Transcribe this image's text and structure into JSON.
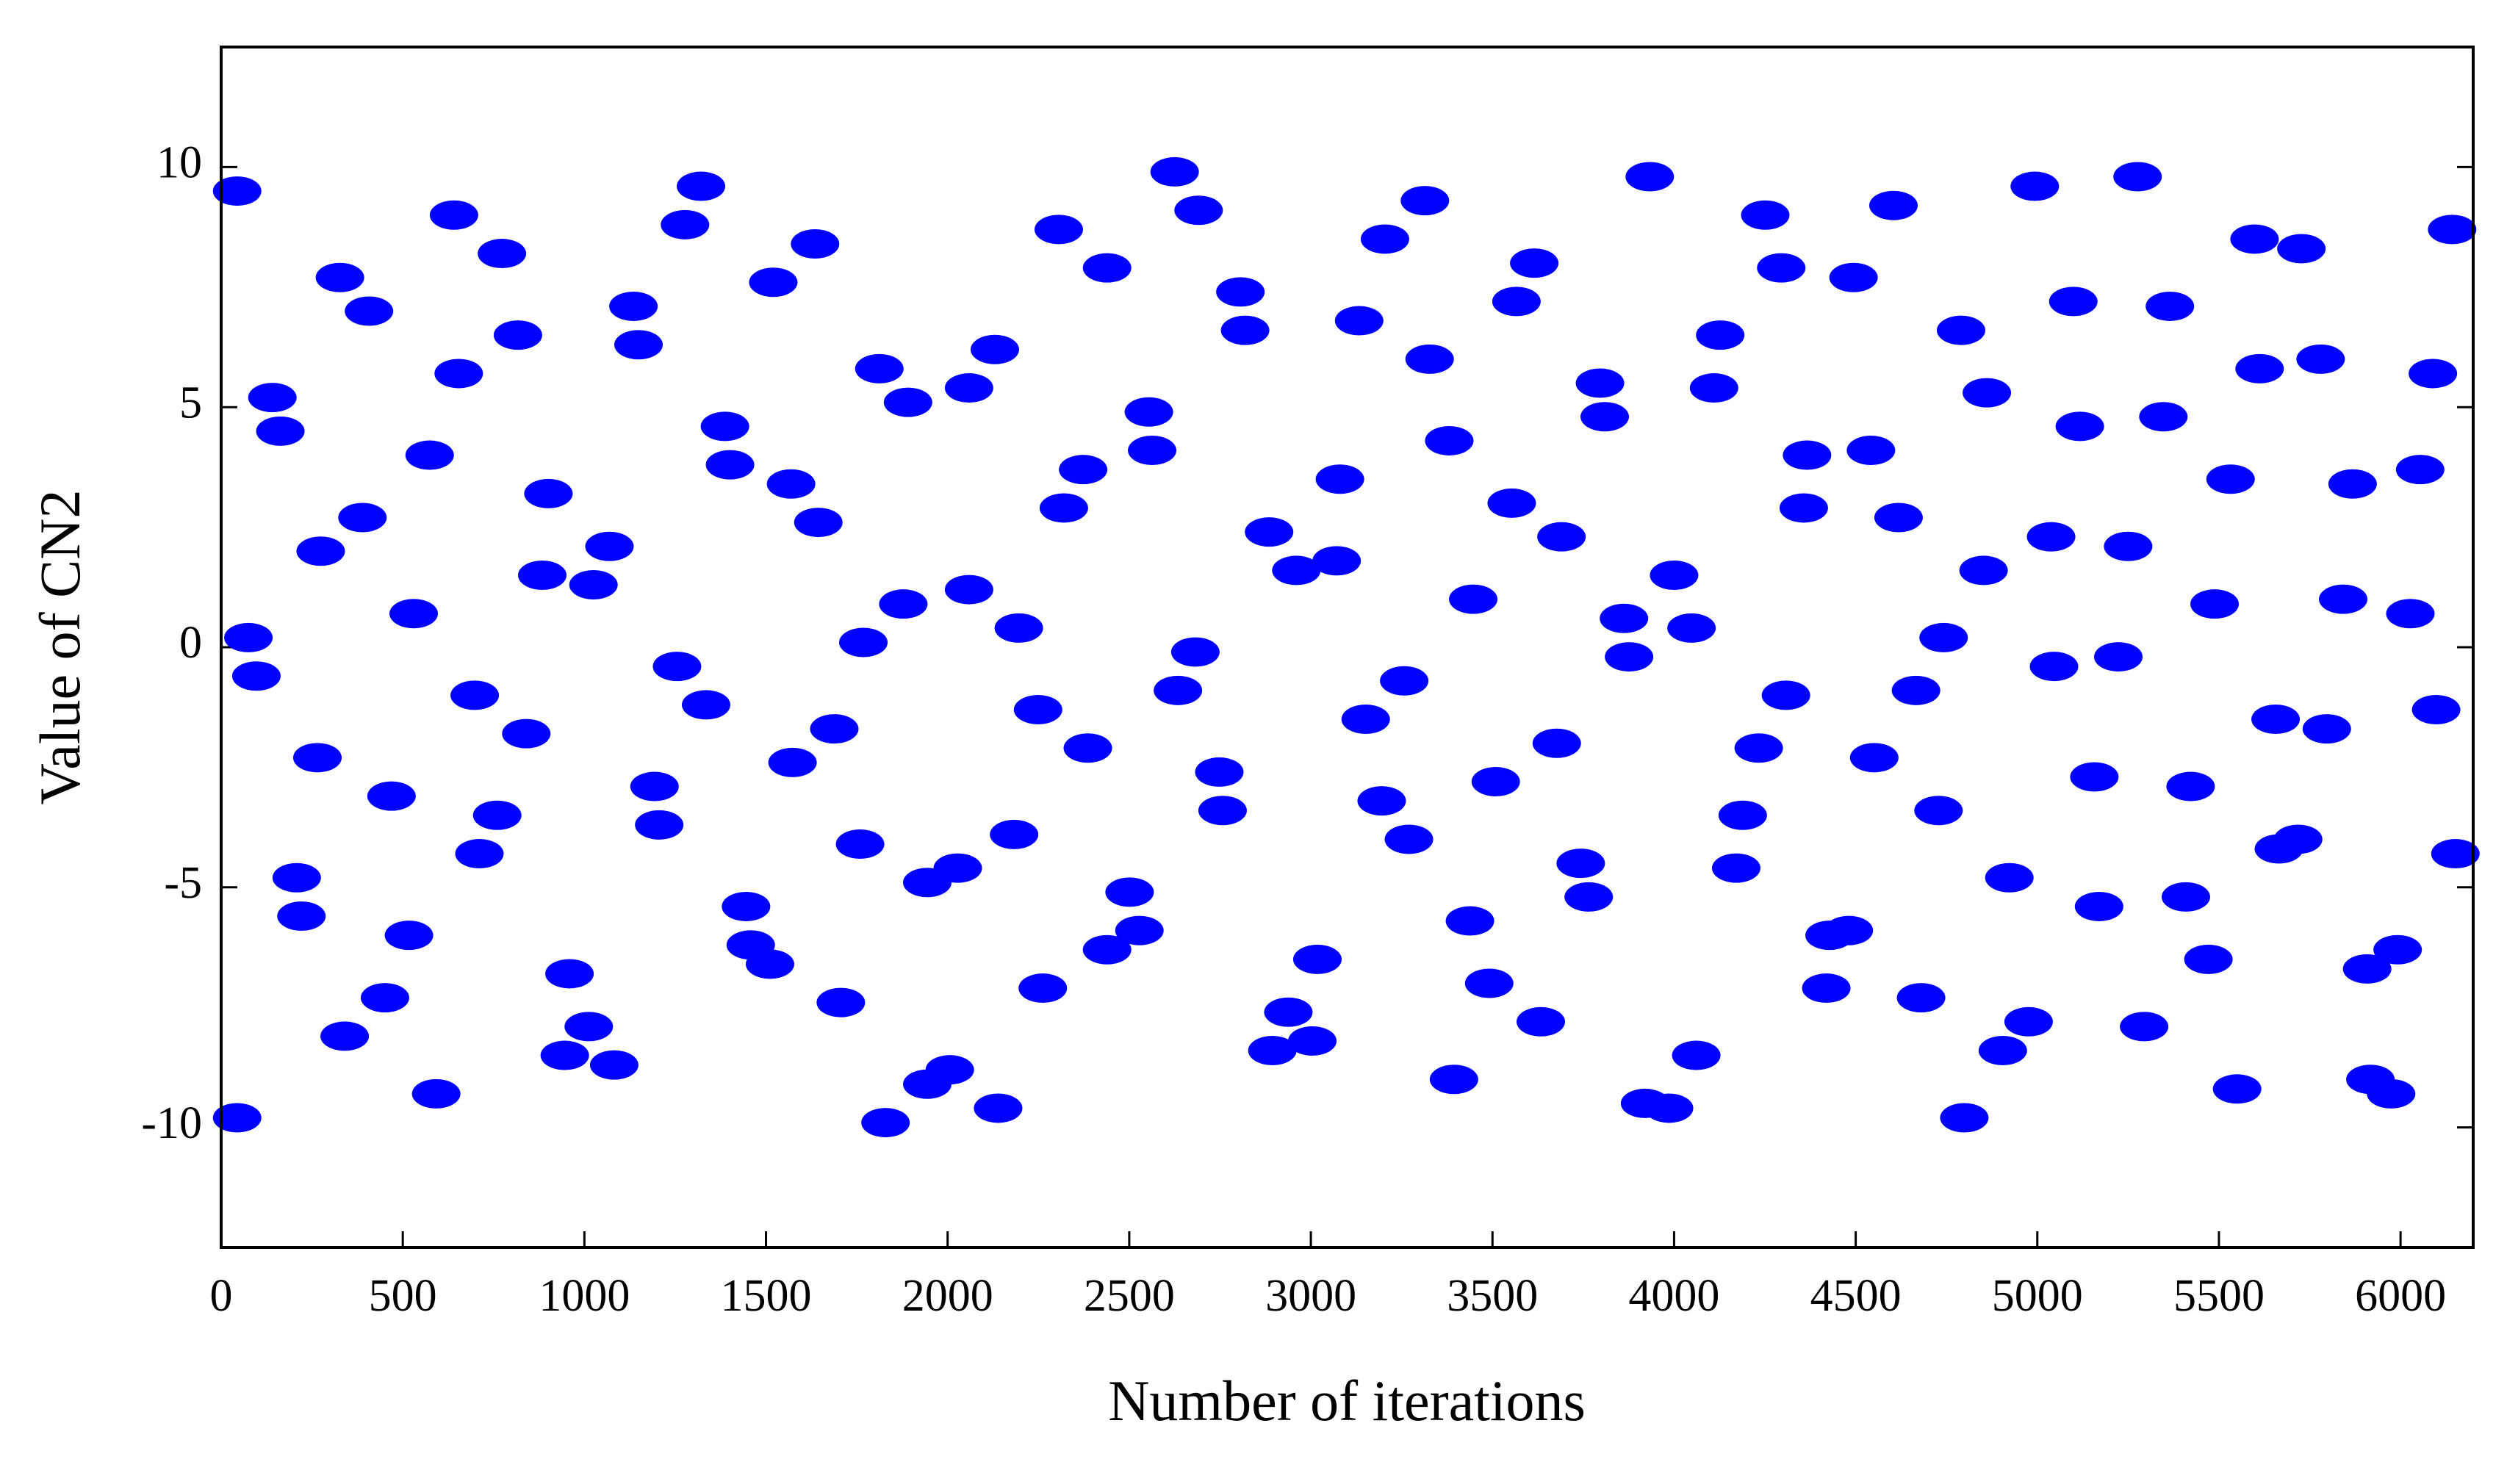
{
  "chart_data": {
    "type": "scatter",
    "x_label": "Number of iterations",
    "y_label": "Value of CN2",
    "color": "#0000ff",
    "xlim": [
      0,
      6200
    ],
    "xticks": [
      0,
      500,
      1000,
      1500,
      2000,
      2500,
      3000,
      3500,
      4000,
      4500,
      5000,
      5500,
      6000
    ],
    "ylim": [
      -12.5,
      12.5
    ],
    "yticks": [
      -10,
      -5,
      0,
      5,
      10
    ],
    "x": [
      44,
      75,
      97,
      44,
      141,
      163,
      208,
      221,
      274,
      265,
      327,
      407,
      340,
      389,
      451,
      469,
      530,
      517,
      574,
      592,
      641,
      654,
      698,
      711,
      760,
      773,
      817,
      840,
      884,
      901,
      946,
      959,
      1012,
      1025,
      1069,
      1082,
      1135,
      1149,
      1193,
      1206,
      1255,
      1277,
      1321,
      1335,
      1387,
      1401,
      1445,
      1458,
      1511,
      1520,
      1573,
      1569,
      1635,
      1644,
      1688,
      1706,
      1759,
      1768,
      1812,
      1829,
      1891,
      1878,
      1944,
      1944,
      2006,
      2028,
      2059,
      2059,
      2130,
      2139,
      2183,
      2196,
      2249,
      2262,
      2306,
      2320,
      2373,
      2386,
      2439,
      2439,
      2501,
      2528,
      2554,
      2563,
      2625,
      2634,
      2682,
      2691,
      2748,
      2757,
      2806,
      2819,
      2885,
      2894,
      2938,
      2960,
      3004,
      3018,
      3071,
      3080,
      3133,
      3151,
      3195,
      3204,
      3257,
      3270,
      3314,
      3327,
      3381,
      3394,
      3438,
      3447,
      3491,
      3509,
      3553,
      3566,
      3615,
      3633,
      3677,
      3690,
      3743,
      3765,
      3796,
      3809,
      3862,
      3876,
      3920,
      3933,
      3986,
      4000,
      4048,
      4061,
      4110,
      4127,
      4171,
      4189,
      4233,
      4251,
      4295,
      4308,
      4357,
      4366,
      4419,
      4428,
      4481,
      4494,
      4551,
      4542,
      4604,
      4618,
      4666,
      4680,
      4728,
      4742,
      4790,
      4799,
      4852,
      4861,
      4905,
      4923,
      4976,
      4993,
      5038,
      5046,
      5099,
      5117,
      5157,
      5170,
      5223,
      5250,
      5276,
      5294,
      5347,
      5365,
      5409,
      5422,
      5471,
      5488,
      5532,
      5550,
      5598,
      5612,
      5656,
      5665,
      5718,
      5727,
      5780,
      5797,
      5842,
      5868,
      5908,
      5917,
      5974,
      5992,
      6027,
      6054,
      6089,
      6098,
      6142,
      6151
    ],
    "values": [
      9.5,
      0.2,
      -0.6,
      -9.8,
      5.2,
      4.5,
      -4.8,
      -5.6,
      2.0,
      -2.3,
      7.7,
      7.0,
      -8.1,
      2.7,
      -7.3,
      -3.1,
      0.7,
      -6.0,
      4.0,
      -9.3,
      9.0,
      5.7,
      -1.0,
      -4.3,
      -3.5,
      8.2,
      6.5,
      -1.8,
      1.5,
      3.2,
      -8.5,
      -6.8,
      -7.9,
      1.3,
      2.1,
      -8.7,
      7.1,
      6.3,
      -2.9,
      -3.7,
      -0.4,
      8.8,
      9.6,
      -1.2,
      4.6,
      3.8,
      -5.4,
      -6.2,
      -6.6,
      7.6,
      -2.4,
      3.4,
      8.4,
      2.6,
      -1.7,
      -7.4,
      -4.1,
      0.1,
      5.8,
      -9.9,
      5.1,
      0.9,
      -4.9,
      -9.1,
      -8.8,
      -4.6,
      5.4,
      1.2,
      6.2,
      -9.6,
      -3.9,
      0.4,
      -1.3,
      -7.1,
      8.7,
      2.9,
      3.7,
      -2.1,
      7.9,
      -6.3,
      -5.1,
      -5.9,
      4.9,
      4.1,
      9.9,
      -0.9,
      -0.1,
      9.1,
      -2.6,
      -3.4,
      7.4,
      6.6,
      2.4,
      -8.4,
      -7.6,
      1.6,
      -8.2,
      -6.5,
      1.8,
      3.5,
      6.8,
      -1.5,
      -3.2,
      8.5,
      -0.7,
      -4.0,
      9.3,
      6.0,
      4.3,
      -9.0,
      -5.7,
      1.0,
      -7.0,
      -2.8,
      3.0,
      7.2,
      8.0,
      -7.8,
      -2.0,
      2.3,
      -4.5,
      -5.2,
      5.5,
      4.8,
      0.6,
      -0.2,
      -9.5,
      9.8,
      -9.6,
      1.5,
      0.4,
      -8.5,
      5.4,
      6.5,
      -4.6,
      -3.5,
      -2.1,
      9.0,
      7.9,
      -1.0,
      2.9,
      4.0,
      -7.1,
      -6.0,
      -5.9,
      7.7,
      -2.3,
      4.1,
      9.2,
      2.7,
      -0.9,
      -7.3,
      -3.4,
      0.2,
      6.6,
      -9.8,
      1.6,
      5.3,
      -8.4,
      -4.8,
      -7.8,
      9.6,
      2.3,
      -0.4,
      7.2,
      4.6,
      -2.7,
      -5.4,
      -0.2,
      2.1,
      9.8,
      -7.9,
      4.8,
      7.1,
      -5.2,
      -2.9,
      -6.5,
      0.9,
      3.5,
      -9.2,
      8.5,
      5.8,
      -1.5,
      -4.2,
      -4.0,
      8.3,
      6.0,
      -1.7,
      1.0,
      3.4,
      -6.7,
      -9.0,
      -9.3,
      -6.3,
      0.7,
      3.7,
      5.7,
      -1.3,
      8.7,
      -4.3
    ]
  }
}
